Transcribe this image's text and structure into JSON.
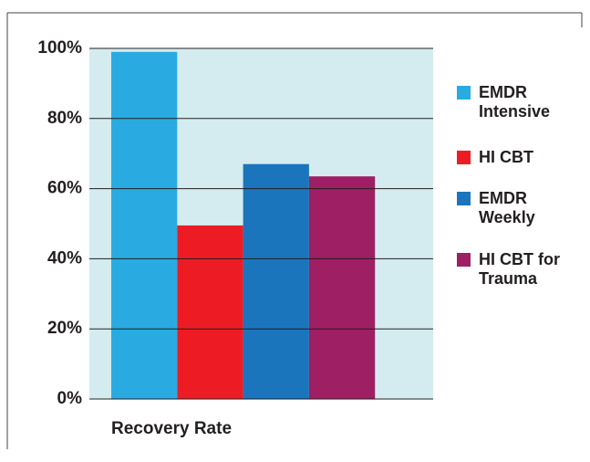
{
  "chart_data": {
    "type": "bar",
    "categories": [
      "Recovery Rate"
    ],
    "series": [
      {
        "name": "EMDR Intensive",
        "color": "#29abe2",
        "values": [
          99
        ]
      },
      {
        "name": "HI CBT",
        "color": "#ed1c24",
        "values": [
          49.5
        ]
      },
      {
        "name": "EMDR Weekly",
        "color": "#1b75bc",
        "values": [
          67
        ]
      },
      {
        "name": "HI CBT for Trauma",
        "color": "#9e1f63",
        "values": [
          63.5
        ]
      }
    ],
    "ylim": [
      0,
      100
    ],
    "yticks": [
      {
        "value": 0,
        "label": "0%"
      },
      {
        "value": 20,
        "label": "20%"
      },
      {
        "value": 40,
        "label": "40%"
      },
      {
        "value": 60,
        "label": "60%"
      },
      {
        "value": 80,
        "label": "80%"
      },
      {
        "value": 100,
        "label": "100%"
      }
    ],
    "grid": true,
    "legend": "right"
  }
}
